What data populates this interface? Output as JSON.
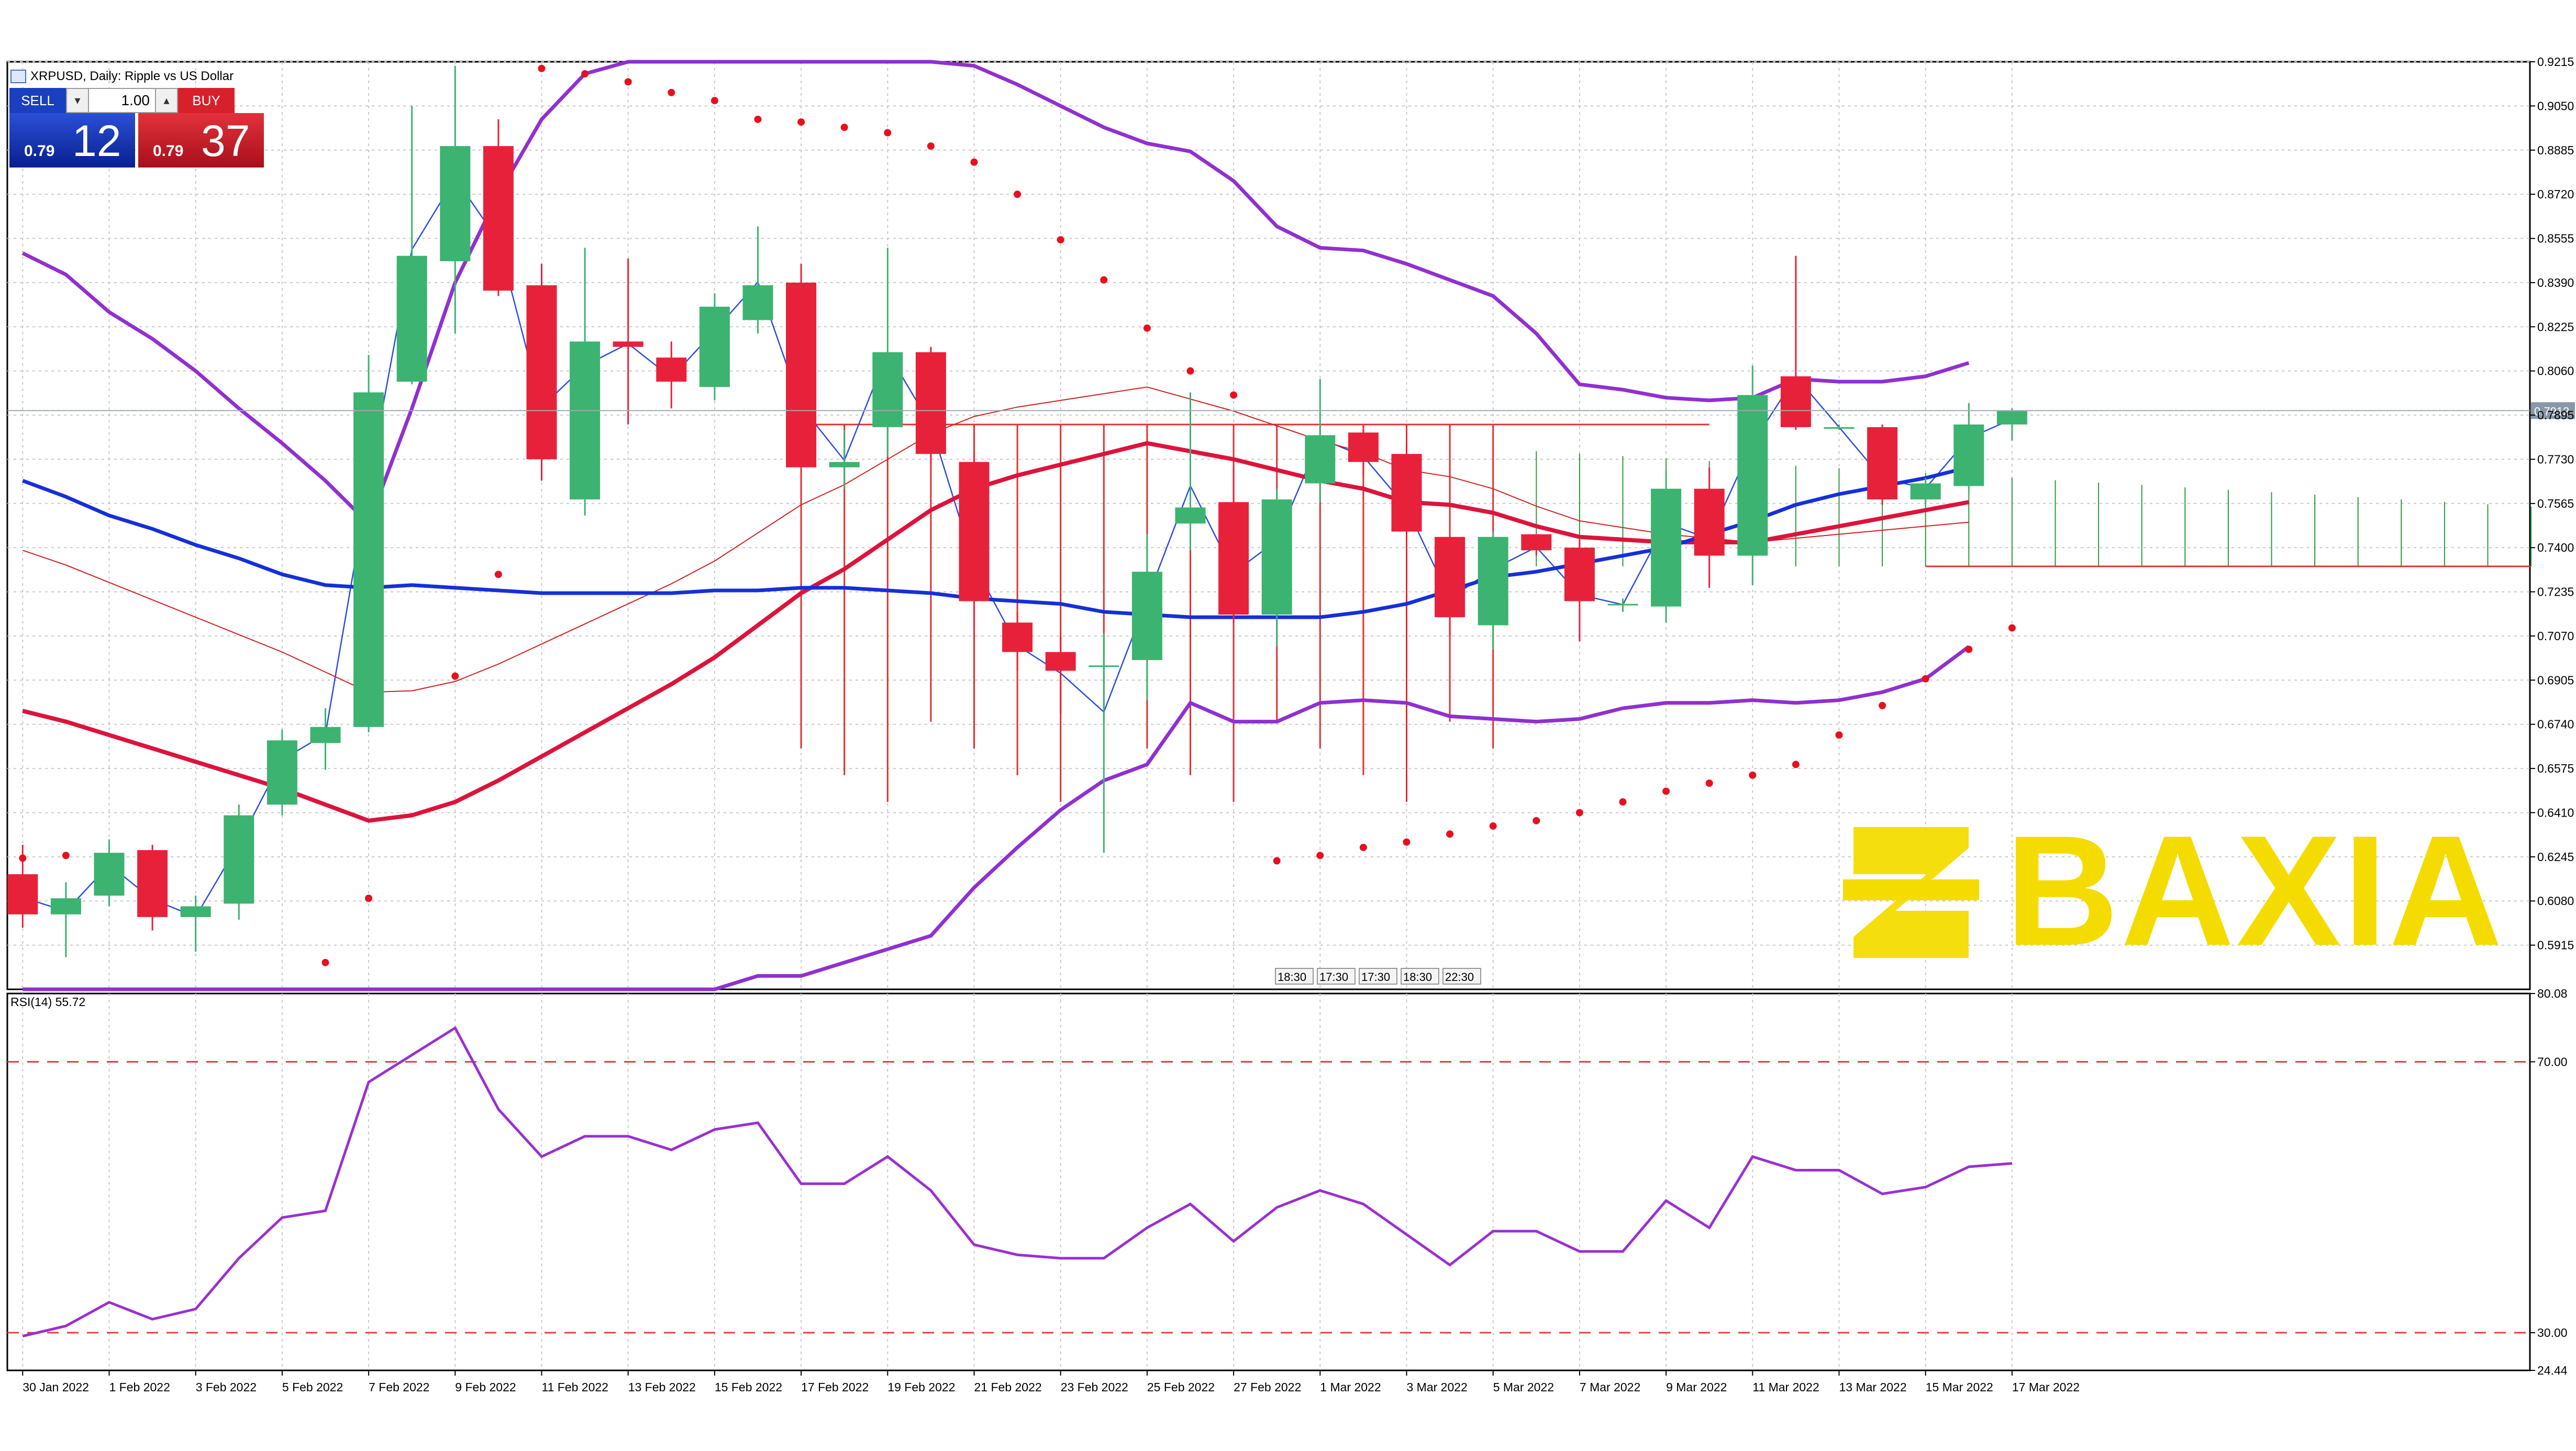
{
  "window": {
    "title": "XRPUSD, Daily:  Ripple vs US Dollar"
  },
  "trade_panel": {
    "sell_label": "SELL",
    "buy_label": "BUY",
    "volume": "1.00",
    "sell_price_prefix": "0.79",
    "sell_price_big": "12",
    "buy_price_prefix": "0.79",
    "buy_price_big": "37",
    "sell_color": "#1a3fbf",
    "buy_color": "#d8202b"
  },
  "watermark": {
    "text": "BAXIA",
    "color": "#f4dc00"
  },
  "current_price_label": "0.7912",
  "rsi_label": "RSI(14) 55.72",
  "time_labels": [
    "18:30",
    "17:30",
    "17:30",
    "18:30",
    "22:30"
  ],
  "chart_data": [
    {
      "type": "candlestick",
      "title": "XRPUSD, Daily:  Ripple vs US Dollar",
      "ylim": [
        0.575,
        0.9215
      ],
      "y_ticks": [
        "0.9215",
        "0.9050",
        "0.8885",
        "0.8720",
        "0.8555",
        "0.8390",
        "0.8225",
        "0.8060",
        "0.7895",
        "0.7730",
        "0.7565",
        "0.7400",
        "0.7235",
        "0.7070",
        "0.6905",
        "0.6740",
        "0.6575",
        "0.6410",
        "0.6245",
        "0.6080",
        "0.5915"
      ],
      "x_labels": [
        "30 Jan 2022",
        "1 Feb 2022",
        "3 Feb 2022",
        "5 Feb 2022",
        "7 Feb 2022",
        "9 Feb 2022",
        "11 Feb 2022",
        "13 Feb 2022",
        "15 Feb 2022",
        "17 Feb 2022",
        "19 Feb 2022",
        "21 Feb 2022",
        "23 Feb 2022",
        "25 Feb 2022",
        "27 Feb 2022",
        "1 Mar 2022",
        "3 Mar 2022",
        "5 Mar 2022",
        "7 Mar 2022",
        "9 Mar 2022",
        "11 Mar 2022",
        "13 Mar 2022",
        "15 Mar 2022",
        "17 Mar 2022"
      ],
      "candles": [
        {
          "o": 0.618,
          "h": 0.629,
          "l": 0.598,
          "c": 0.603
        },
        {
          "o": 0.603,
          "h": 0.615,
          "l": 0.587,
          "c": 0.609
        },
        {
          "o": 0.61,
          "h": 0.631,
          "l": 0.606,
          "c": 0.626
        },
        {
          "o": 0.627,
          "h": 0.629,
          "l": 0.597,
          "c": 0.602
        },
        {
          "o": 0.602,
          "h": 0.61,
          "l": 0.589,
          "c": 0.606
        },
        {
          "o": 0.607,
          "h": 0.644,
          "l": 0.601,
          "c": 0.64
        },
        {
          "o": 0.644,
          "h": 0.672,
          "l": 0.64,
          "c": 0.668
        },
        {
          "o": 0.667,
          "h": 0.68,
          "l": 0.657,
          "c": 0.673
        },
        {
          "o": 0.673,
          "h": 0.812,
          "l": 0.671,
          "c": 0.798
        },
        {
          "o": 0.802,
          "h": 0.905,
          "l": 0.801,
          "c": 0.849
        },
        {
          "o": 0.847,
          "h": 0.92,
          "l": 0.82,
          "c": 0.89
        },
        {
          "o": 0.89,
          "h": 0.9,
          "l": 0.834,
          "c": 0.836
        },
        {
          "o": 0.838,
          "h": 0.846,
          "l": 0.765,
          "c": 0.773
        },
        {
          "o": 0.758,
          "h": 0.852,
          "l": 0.752,
          "c": 0.817
        },
        {
          "o": 0.817,
          "h": 0.848,
          "l": 0.786,
          "c": 0.815
        },
        {
          "o": 0.811,
          "h": 0.817,
          "l": 0.792,
          "c": 0.802
        },
        {
          "o": 0.8,
          "h": 0.835,
          "l": 0.795,
          "c": 0.83
        },
        {
          "o": 0.825,
          "h": 0.86,
          "l": 0.82,
          "c": 0.838
        },
        {
          "o": 0.839,
          "h": 0.846,
          "l": 0.77,
          "c": 0.77
        },
        {
          "o": 0.77,
          "h": 0.784,
          "l": 0.762,
          "c": 0.772
        },
        {
          "o": 0.785,
          "h": 0.852,
          "l": 0.774,
          "c": 0.813
        },
        {
          "o": 0.813,
          "h": 0.815,
          "l": 0.771,
          "c": 0.775
        },
        {
          "o": 0.772,
          "h": 0.775,
          "l": 0.71,
          "c": 0.72
        },
        {
          "o": 0.712,
          "h": 0.716,
          "l": 0.694,
          "c": 0.701
        },
        {
          "o": 0.701,
          "h": 0.707,
          "l": 0.678,
          "c": 0.694
        },
        {
          "o": 0.696,
          "h": 0.708,
          "l": 0.626,
          "c": 0.696
        },
        {
          "o": 0.698,
          "h": 0.745,
          "l": 0.683,
          "c": 0.731
        },
        {
          "o": 0.749,
          "h": 0.798,
          "l": 0.739,
          "c": 0.755
        },
        {
          "o": 0.757,
          "h": 0.77,
          "l": 0.712,
          "c": 0.715
        },
        {
          "o": 0.715,
          "h": 0.762,
          "l": 0.703,
          "c": 0.758
        },
        {
          "o": 0.764,
          "h": 0.803,
          "l": 0.757,
          "c": 0.782
        },
        {
          "o": 0.783,
          "h": 0.784,
          "l": 0.767,
          "c": 0.772
        },
        {
          "o": 0.775,
          "h": 0.779,
          "l": 0.743,
          "c": 0.746
        },
        {
          "o": 0.744,
          "h": 0.744,
          "l": 0.707,
          "c": 0.714
        },
        {
          "o": 0.711,
          "h": 0.746,
          "l": 0.702,
          "c": 0.744
        },
        {
          "o": 0.745,
          "h": 0.745,
          "l": 0.737,
          "c": 0.739
        },
        {
          "o": 0.74,
          "h": 0.743,
          "l": 0.705,
          "c": 0.72
        },
        {
          "o": 0.719,
          "h": 0.721,
          "l": 0.716,
          "c": 0.719
        },
        {
          "o": 0.718,
          "h": 0.769,
          "l": 0.712,
          "c": 0.762
        },
        {
          "o": 0.762,
          "h": 0.77,
          "l": 0.725,
          "c": 0.737
        },
        {
          "o": 0.737,
          "h": 0.808,
          "l": 0.726,
          "c": 0.797
        },
        {
          "o": 0.804,
          "h": 0.849,
          "l": 0.784,
          "c": 0.785
        },
        {
          "o": 0.785,
          "h": 0.786,
          "l": 0.784,
          "c": 0.785
        },
        {
          "o": 0.785,
          "h": 0.786,
          "l": 0.756,
          "c": 0.758
        },
        {
          "o": 0.758,
          "h": 0.766,
          "l": 0.756,
          "c": 0.764
        },
        {
          "o": 0.763,
          "h": 0.794,
          "l": 0.761,
          "c": 0.786
        },
        {
          "o": 0.786,
          "h": 0.792,
          "l": 0.78,
          "c": 0.791
        }
      ],
      "sma_red": [
        0.679,
        0.675,
        0.67,
        0.665,
        0.66,
        0.655,
        0.65,
        0.644,
        0.638,
        0.64,
        0.645,
        0.653,
        0.662,
        0.671,
        0.68,
        0.689,
        0.699,
        0.711,
        0.723,
        0.732,
        0.743,
        0.754,
        0.762,
        0.767,
        0.771,
        0.775,
        0.779,
        0.776,
        0.773,
        0.769,
        0.765,
        0.762,
        0.757,
        0.756,
        0.753,
        0.748,
        0.744,
        0.743,
        0.742,
        0.742,
        0.742,
        0.745,
        0.748,
        0.751,
        0.754,
        0.757
      ],
      "sma_blue": [
        0.765,
        0.759,
        0.752,
        0.747,
        0.741,
        0.736,
        0.73,
        0.726,
        0.725,
        0.726,
        0.725,
        0.724,
        0.723,
        0.723,
        0.723,
        0.723,
        0.724,
        0.724,
        0.725,
        0.725,
        0.724,
        0.723,
        0.721,
        0.72,
        0.719,
        0.716,
        0.715,
        0.714,
        0.714,
        0.714,
        0.714,
        0.716,
        0.719,
        0.724,
        0.729,
        0.731,
        0.734,
        0.737,
        0.74,
        0.745,
        0.75,
        0.756,
        0.76,
        0.763,
        0.766,
        0.77
      ],
      "bb_upper": [
        0.85,
        0.842,
        0.828,
        0.818,
        0.806,
        0.792,
        0.779,
        0.765,
        0.749,
        0.792,
        0.839,
        0.872,
        0.9,
        0.917,
        0.933,
        0.944,
        0.955,
        0.958,
        0.959,
        0.958,
        0.942,
        0.928,
        0.92,
        0.913,
        0.905,
        0.897,
        0.891,
        0.888,
        0.877,
        0.86,
        0.852,
        0.851,
        0.846,
        0.84,
        0.834,
        0.82,
        0.801,
        0.799,
        0.796,
        0.795,
        0.796,
        0.803,
        0.802,
        0.802,
        0.804,
        0.809
      ],
      "bb_lower": [
        0.51,
        0.515,
        0.519,
        0.518,
        0.525,
        0.53,
        0.54,
        0.55,
        0.545,
        0.54,
        0.538,
        0.53,
        0.52,
        0.52,
        0.525,
        0.55,
        0.565,
        0.58,
        0.58,
        0.585,
        0.59,
        0.595,
        0.613,
        0.628,
        0.642,
        0.653,
        0.659,
        0.682,
        0.675,
        0.675,
        0.682,
        0.683,
        0.682,
        0.677,
        0.676,
        0.675,
        0.676,
        0.68,
        0.682,
        0.682,
        0.683,
        0.682,
        0.683,
        0.686,
        0.691,
        0.703
      ],
      "psar": [
        0.624,
        0.625,
        null,
        null,
        null,
        null,
        null,
        0.585,
        0.609,
        null,
        0.692,
        0.73,
        0.919,
        0.917,
        0.914,
        0.91,
        0.907,
        0.9,
        0.899,
        0.897,
        0.895,
        0.89,
        0.884,
        0.872,
        0.855,
        0.84,
        0.822,
        0.806,
        0.797,
        0.623,
        0.625,
        0.628,
        0.63,
        0.633,
        0.636,
        0.638,
        0.641,
        0.645,
        0.649,
        0.652,
        0.655,
        0.659,
        0.67,
        0.681,
        0.691,
        0.702,
        0.71
      ],
      "rsi": {
        "ylim": [
          24.44,
          80.08
        ],
        "levels": [
          70.0,
          30.0
        ],
        "y_ticks": [
          "80.08",
          "70.00",
          "30.00",
          "24.44"
        ],
        "values": [
          29.5,
          31.0,
          34.5,
          32.0,
          33.5,
          41.0,
          47.0,
          48.0,
          67.0,
          71.0,
          75.0,
          63.0,
          56.0,
          59.0,
          59.0,
          57.0,
          60.0,
          61.0,
          52.0,
          52.0,
          56.0,
          51.0,
          43.0,
          41.5,
          41.0,
          41.0,
          45.5,
          49.0,
          43.5,
          48.5,
          51.0,
          49.0,
          44.5,
          40.0,
          45.0,
          45.0,
          42.0,
          42.0,
          49.5,
          45.5,
          56.0,
          54.0,
          54.0,
          50.5,
          51.5,
          54.5,
          55.0
        ]
      }
    }
  ]
}
